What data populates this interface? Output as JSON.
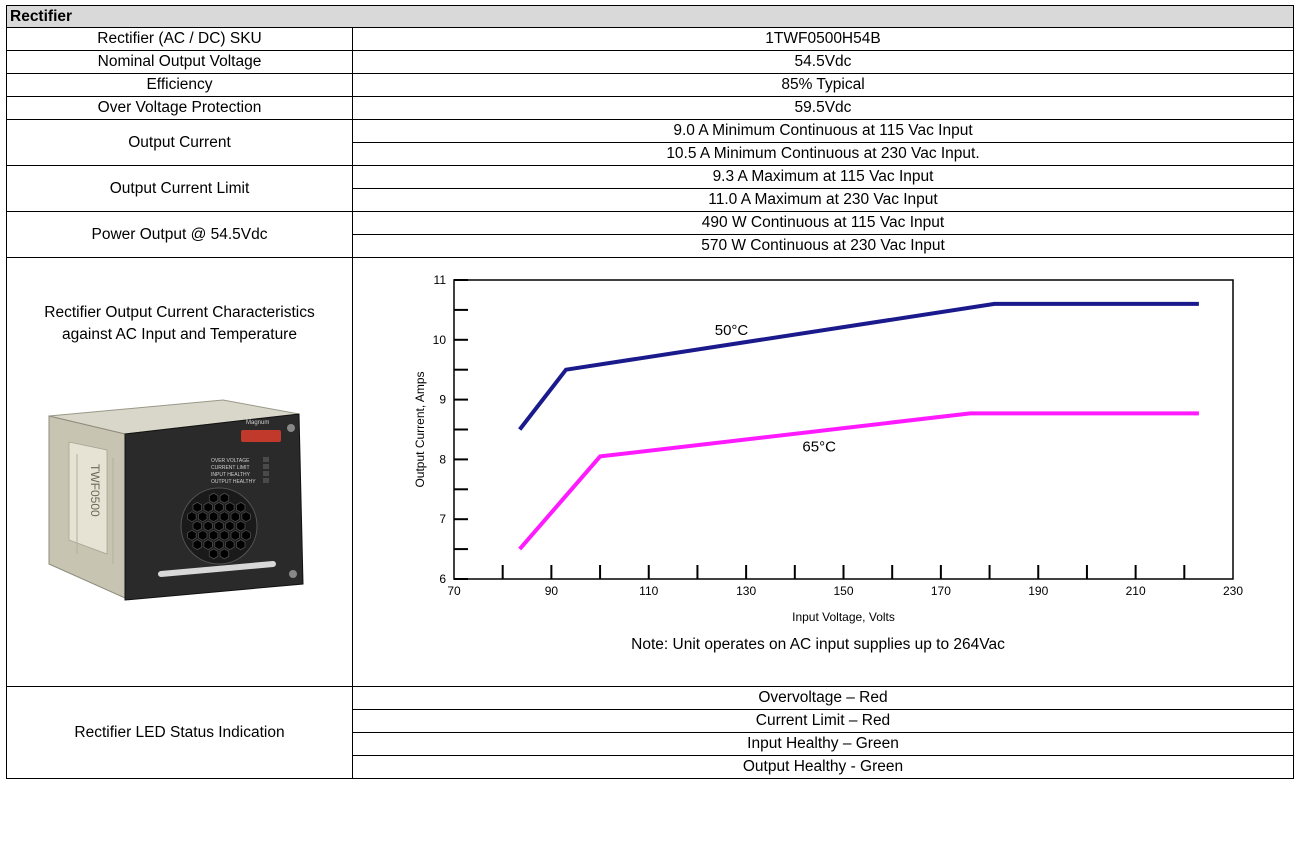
{
  "section_title": "Rectifier",
  "rows": {
    "sku": {
      "label": "Rectifier (AC / DC) SKU",
      "value": "1TWF0500H54B"
    },
    "nominal_voltage": {
      "label": "Nominal Output Voltage",
      "value": "54.5Vdc"
    },
    "efficiency": {
      "label": "Efficiency",
      "value": "85% Typical"
    },
    "ovp": {
      "label": "Over Voltage Protection",
      "value": "59.5Vdc"
    },
    "output_current": {
      "label": "Output Current",
      "values": [
        "9.0 A Minimum Continuous at 115 Vac Input",
        "10.5 A Minimum Continuous at 230 Vac Input."
      ]
    },
    "current_limit": {
      "label": "Output Current Limit",
      "values": [
        "9.3 A Maximum at 115 Vac Input",
        "11.0 A Maximum at 230 Vac Input"
      ]
    },
    "power_output": {
      "label": "Power Output @ 54.5Vdc",
      "values": [
        "490 W Continuous at 115 Vac Input",
        "570 W Continuous at 230 Vac Input"
      ]
    },
    "characteristics": {
      "label_line1": "Rectifier Output Current Characteristics",
      "label_line2": "against AC Input and Temperature",
      "note": "Note: Unit operates on AC input supplies up to 264Vac"
    },
    "led": {
      "label": "Rectifier LED Status Indication",
      "values": [
        "Overvoltage – Red",
        "Current Limit – Red",
        "Input Healthy – Green",
        "Output Healthy - Green"
      ]
    }
  },
  "product_image": {
    "icon": "rectifier-module-photo",
    "model_text": "TWF0500"
  },
  "chart_data": {
    "type": "line",
    "xlabel": "Input Voltage, Volts",
    "ylabel": "Output Current, Amps",
    "xlim": [
      70,
      230
    ],
    "ylim": [
      6,
      11
    ],
    "x_ticks": [
      70,
      90,
      110,
      130,
      150,
      170,
      190,
      210,
      230
    ],
    "y_ticks": [
      6,
      7,
      8,
      9,
      10,
      11
    ],
    "grid": false,
    "series": [
      {
        "name": "50°C",
        "color": "#1a1a8c",
        "x": [
          83.5,
          93,
          181,
          223
        ],
        "y": [
          8.5,
          9.5,
          10.6,
          10.6
        ]
      },
      {
        "name": "65°C",
        "color": "#ff1aff",
        "x": [
          83.5,
          100,
          176,
          223
        ],
        "y": [
          6.5,
          8.05,
          8.77,
          8.77
        ]
      }
    ],
    "annotations": [
      {
        "text": "50°C",
        "x": 127,
        "y": 10.08
      },
      {
        "text": "65°C",
        "x": 145,
        "y": 8.13
      }
    ]
  }
}
